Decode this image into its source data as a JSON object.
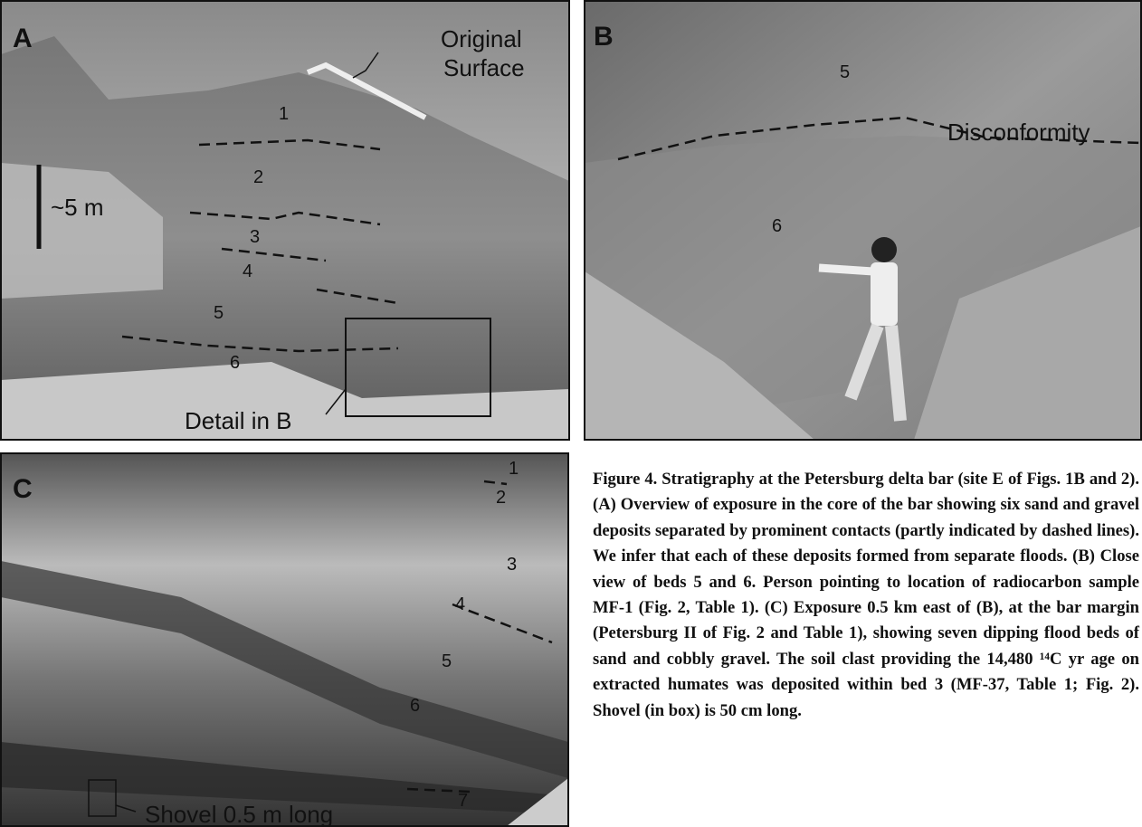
{
  "panels": [
    {
      "label": "A",
      "annotations": {
        "surface": [
          "Original",
          "Surface"
        ],
        "scale": "~5 m",
        "beds": [
          "1",
          "2",
          "3",
          "4",
          "5",
          "6"
        ],
        "detail": "Detail in B"
      }
    },
    {
      "label": "B",
      "annotations": {
        "beds": [
          "5",
          "6"
        ],
        "contact": "Disconformity"
      }
    },
    {
      "label": "C",
      "annotations": {
        "beds": [
          "1",
          "2",
          "3",
          "4",
          "5",
          "6",
          "7"
        ],
        "shovel": "Shovel 0.5 m long"
      }
    }
  ],
  "caption": "Figure 4. Stratigraphy at the Petersburg delta bar (site E of Figs. 1B and 2). (A) Overview of exposure in the core of the bar showing six sand and gravel deposits separated by prominent contacts (partly indicated by dashed lines). We infer that each of these deposits formed from separate floods. (B) Close view of beds 5 and 6. Person pointing to location of radiocarbon sample MF-1 (Fig. 2, Table 1). (C) Exposure 0.5 km east of (B), at the bar margin (Petersburg II of Fig. 2 and Table 1), showing seven dipping flood beds of sand and cobbly gravel. The soil clast providing the 14,480 ¹⁴C yr age on extracted humates was deposited within bed 3 (MF-37, Table 1; Fig. 2). Shovel (in box) is 50 cm long."
}
